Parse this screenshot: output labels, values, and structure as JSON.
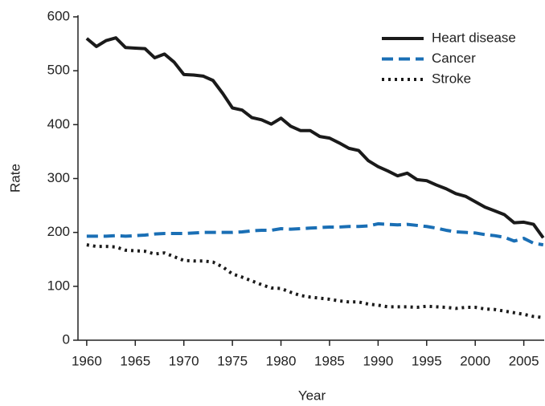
{
  "chart_data": {
    "type": "line",
    "x": [
      1960,
      1961,
      1962,
      1963,
      1964,
      1965,
      1966,
      1967,
      1968,
      1969,
      1970,
      1971,
      1972,
      1973,
      1974,
      1975,
      1976,
      1977,
      1978,
      1979,
      1980,
      1981,
      1982,
      1983,
      1984,
      1985,
      1986,
      1987,
      1988,
      1989,
      1990,
      1991,
      1992,
      1993,
      1994,
      1995,
      1996,
      1997,
      1998,
      1999,
      2000,
      2001,
      2002,
      2003,
      2004,
      2005,
      2006,
      2007
    ],
    "series": [
      {
        "name": "Heart disease",
        "color": "#1a1a1a",
        "dash": "solid",
        "values": [
          560,
          545,
          556,
          561,
          543,
          542,
          541,
          524,
          531,
          516,
          493,
          492,
          490,
          482,
          458,
          431,
          427,
          413,
          409,
          401,
          412,
          397,
          389,
          389,
          378,
          375,
          366,
          356,
          352,
          333,
          322,
          314,
          305,
          310,
          298,
          296,
          288,
          281,
          272,
          267,
          257,
          247,
          240,
          233,
          218,
          219,
          215,
          190
        ]
      },
      {
        "name": "Cancer",
        "color": "#1a6fb5",
        "dash": "dashed",
        "values": [
          193,
          193,
          193,
          194,
          193,
          194,
          195,
          197,
          198,
          198,
          198,
          199,
          200,
          200,
          200,
          200,
          201,
          203,
          204,
          204,
          207,
          206,
          207,
          208,
          209,
          210,
          210,
          211,
          211,
          212,
          216,
          215,
          214,
          215,
          213,
          211,
          208,
          204,
          201,
          200,
          199,
          196,
          194,
          191,
          184,
          189,
          180,
          177
        ]
      },
      {
        "name": "Stroke",
        "color": "#1a1a1a",
        "dash": "dotted",
        "values": [
          177,
          174,
          174,
          173,
          167,
          166,
          165,
          160,
          162,
          155,
          148,
          147,
          147,
          145,
          136,
          123,
          117,
          110,
          103,
          97,
          96,
          89,
          83,
          80,
          78,
          76,
          73,
          71,
          71,
          67,
          65,
          62,
          62,
          62,
          61,
          63,
          62,
          61,
          59,
          61,
          61,
          58,
          57,
          54,
          51,
          48,
          44,
          42
        ]
      }
    ],
    "xlabel": "Year",
    "ylabel": "Rate",
    "xlim": [
      1959.1,
      2007.1
    ],
    "xticks": [
      1960,
      1965,
      1970,
      1975,
      1980,
      1985,
      1990,
      1995,
      2000,
      2005
    ],
    "ylim": [
      0,
      600
    ],
    "yticks": [
      0,
      100,
      200,
      300,
      400,
      500,
      600
    ],
    "legend": "upper right"
  }
}
